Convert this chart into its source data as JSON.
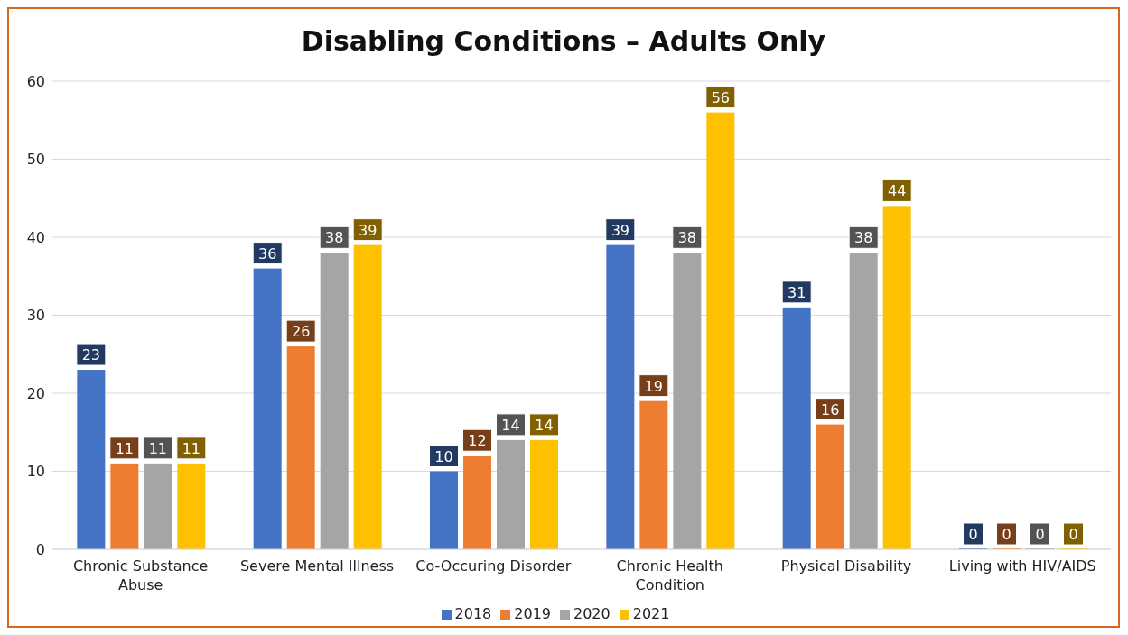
{
  "chart_data": {
    "type": "bar",
    "title": "Disabling Conditions – Adults Only",
    "categories": [
      "Chronic Substance Abuse",
      "Severe Mental Illness",
      "Co-Occuring Disorder",
      "Chronic Health Condition",
      "Physical Disability",
      "Living with HIV/AIDS"
    ],
    "series": [
      {
        "name": "2018",
        "color": "#4472c4",
        "values": [
          23,
          36,
          10,
          39,
          31,
          0
        ]
      },
      {
        "name": "2019",
        "color": "#ed7d31",
        "values": [
          11,
          26,
          12,
          19,
          16,
          0
        ]
      },
      {
        "name": "2020",
        "color": "#a5a5a5",
        "values": [
          11,
          38,
          14,
          38,
          38,
          0
        ]
      },
      {
        "name": "2021",
        "color": "#ffc000",
        "values": [
          11,
          39,
          14,
          56,
          44,
          0
        ]
      }
    ],
    "ylim": [
      0,
      60
    ],
    "yticks": [
      0,
      10,
      20,
      30,
      40,
      50,
      60
    ],
    "grid": "y",
    "legend": "bottom",
    "data_labels": true
  }
}
